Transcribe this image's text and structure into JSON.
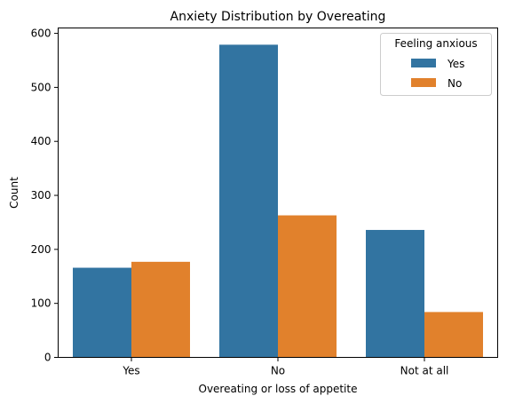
{
  "chart_data": {
    "type": "bar",
    "title": "Anxiety Distribution by Overeating",
    "xlabel": "Overeating or loss of appetite",
    "ylabel": "Count",
    "categories": [
      "Yes",
      "No",
      "Not at all"
    ],
    "ylim": [
      0,
      610
    ],
    "yticks": [
      0,
      100,
      200,
      300,
      400,
      500,
      600
    ],
    "grid": false,
    "legend": {
      "title": "Feeling anxious",
      "placement": "top-right"
    },
    "series": [
      {
        "name": "Yes",
        "color": "#3274a1",
        "values": [
          166,
          579,
          236
        ]
      },
      {
        "name": "No",
        "color": "#e1812c",
        "values": [
          177,
          263,
          84
        ]
      }
    ]
  }
}
